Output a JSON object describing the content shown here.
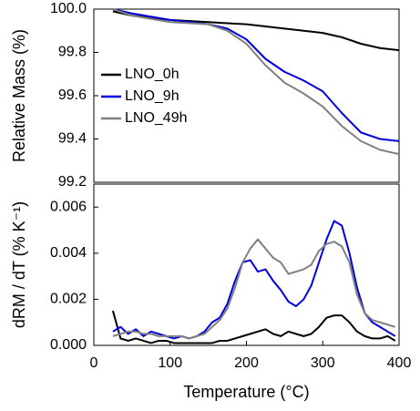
{
  "chart_data": [
    {
      "type": "line",
      "ylabel": "Relative Mass (%)",
      "x": [
        25,
        50,
        100,
        150,
        175,
        200,
        225,
        250,
        275,
        300,
        325,
        350,
        375,
        400
      ],
      "series": [
        {
          "name": "LNO_0h",
          "color": "#000000",
          "values": [
            99.99,
            99.97,
            99.95,
            99.94,
            99.935,
            99.93,
            99.92,
            99.91,
            99.9,
            99.89,
            99.87,
            99.84,
            99.82,
            99.81
          ]
        },
        {
          "name": "LNO_9h",
          "color": "#0000e0",
          "values": [
            100.0,
            99.98,
            99.95,
            99.93,
            99.91,
            99.86,
            99.77,
            99.71,
            99.67,
            99.62,
            99.52,
            99.43,
            99.4,
            99.39
          ]
        },
        {
          "name": "LNO_49h",
          "color": "#808080",
          "values": [
            100.0,
            99.97,
            99.94,
            99.93,
            99.9,
            99.84,
            99.74,
            99.66,
            99.61,
            99.55,
            99.46,
            99.39,
            99.35,
            99.33
          ]
        }
      ],
      "xlim": [
        0,
        400
      ],
      "ylim": [
        99.2,
        100.0
      ],
      "yticks": [
        {
          "value": 100.0,
          "label": "100.0"
        },
        99.8,
        99.6,
        99.4,
        99.2
      ],
      "legend": "left"
    },
    {
      "type": "line",
      "ylabel": "dRM / dT (% K⁻¹)",
      "xlabel": "Temperature (°C)",
      "x": [
        25,
        35,
        45,
        55,
        65,
        75,
        85,
        95,
        105,
        115,
        125,
        135,
        145,
        155,
        165,
        175,
        185,
        195,
        205,
        215,
        225,
        235,
        245,
        255,
        265,
        275,
        285,
        295,
        305,
        315,
        325,
        335,
        345,
        355,
        365,
        375,
        385,
        395
      ],
      "series": [
        {
          "name": "LNO_0h",
          "color": "#000000",
          "values": [
            0.0015,
            0.0003,
            0.0002,
            0.0003,
            0.0002,
            0.0001,
            0.0002,
            0.0002,
            0.0001,
            0.0001,
            0.0001,
            0.0001,
            0.0001,
            0.0001,
            0.0002,
            0.0002,
            0.0003,
            0.0004,
            0.0005,
            0.0006,
            0.0007,
            0.0005,
            0.0004,
            0.0006,
            0.0005,
            0.0004,
            0.0005,
            0.0008,
            0.0012,
            0.0013,
            0.0013,
            0.001,
            0.0006,
            0.0004,
            0.0003,
            0.0003,
            0.0004,
            0.0002
          ]
        },
        {
          "name": "LNO_9h",
          "color": "#0000e0",
          "values": [
            0.0006,
            0.0008,
            0.0005,
            0.0007,
            0.0004,
            0.0006,
            0.0005,
            0.0004,
            0.0003,
            0.0004,
            0.0003,
            0.0004,
            0.0006,
            0.001,
            0.0012,
            0.0018,
            0.0028,
            0.0036,
            0.0037,
            0.0032,
            0.0033,
            0.0028,
            0.0024,
            0.0019,
            0.0017,
            0.002,
            0.0026,
            0.0036,
            0.0046,
            0.0054,
            0.0052,
            0.004,
            0.0025,
            0.0014,
            0.001,
            0.0008,
            0.0006,
            0.0004
          ]
        },
        {
          "name": "LNO_49h",
          "color": "#808080",
          "values": [
            0.0004,
            0.0005,
            0.0006,
            0.0006,
            0.0005,
            0.0005,
            0.0004,
            0.0004,
            0.0004,
            0.0004,
            0.0003,
            0.0004,
            0.0005,
            0.0008,
            0.0011,
            0.0016,
            0.0025,
            0.0036,
            0.0042,
            0.0046,
            0.0042,
            0.0038,
            0.0036,
            0.0031,
            0.0032,
            0.0033,
            0.0035,
            0.0041,
            0.0044,
            0.0045,
            0.0043,
            0.0036,
            0.0022,
            0.0014,
            0.0011,
            0.001,
            0.0009,
            0.0008
          ]
        }
      ],
      "xlim": [
        0,
        400
      ],
      "ylim": [
        0,
        0.007
      ],
      "yticks": [
        {
          "value": 0,
          "label": "0.000"
        },
        0.002,
        0.004,
        0.006
      ],
      "xticks": [
        0,
        100,
        200,
        300,
        400
      ]
    }
  ]
}
